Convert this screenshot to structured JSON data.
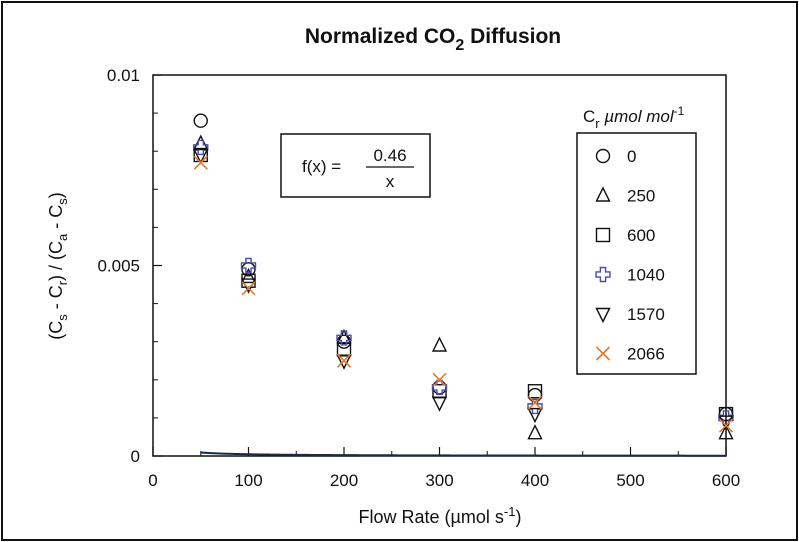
{
  "chart_data": {
    "type": "scatter",
    "title": "Normalized CO",
    "title_subscript": "2",
    "title_suffix": " Diffusion",
    "xlabel": "Flow Rate (µmol s",
    "xlabel_sup": "-1",
    "xlabel_end": ")",
    "ylabel_parts": [
      "(C",
      "s",
      " - C",
      "r",
      ") / (C",
      "a",
      " - C",
      "s",
      ")"
    ],
    "xlim": [
      0,
      600
    ],
    "ylim": [
      0,
      0.01
    ],
    "x_ticks": [
      0,
      100,
      200,
      300,
      400,
      500,
      600
    ],
    "x_tick_labels": [
      "0",
      "100",
      "200",
      "300",
      "400",
      "500",
      "600"
    ],
    "y_ticks": [
      0,
      0.005,
      0.01
    ],
    "y_tick_labels": [
      "0",
      "0.005",
      "0.01"
    ],
    "grid": false,
    "legend_position": "right",
    "legend_title": "C",
    "legend_title_sub": "r",
    "legend_title_unit": " µmol mol",
    "legend_title_sup": "-1",
    "formula": {
      "lhs": "f(x) = ",
      "numerator": "0.46",
      "denominator": "x",
      "a": 0.46
    },
    "series": [
      {
        "name": "0",
        "marker": "circle",
        "color": "#111111",
        "x": [
          50,
          100,
          200,
          300,
          400,
          600
        ],
        "y": [
          0.0088,
          0.0049,
          0.003,
          0.0018,
          0.0016,
          0.0011
        ]
      },
      {
        "name": "250",
        "marker": "triangle-up",
        "color": "#111111",
        "x": [
          50,
          100,
          200,
          300,
          400,
          600
        ],
        "y": [
          0.0082,
          0.0047,
          0.0031,
          0.0029,
          0.0006,
          0.0006
        ]
      },
      {
        "name": "600",
        "marker": "square",
        "color": "#111111",
        "x": [
          50,
          100,
          200,
          300,
          400,
          600
        ],
        "y": [
          0.0079,
          0.0046,
          0.0028,
          0.0017,
          0.0017,
          0.0011
        ]
      },
      {
        "name": "1040",
        "marker": "plus",
        "color": "#4a4aa8",
        "x": [
          50,
          100,
          200,
          300,
          400,
          600
        ],
        "y": [
          0.0081,
          0.005,
          0.0031,
          0.0018,
          0.0013,
          0.001
        ]
      },
      {
        "name": "1570",
        "marker": "triangle-down",
        "color": "#111111",
        "x": [
          50,
          100,
          200,
          300,
          400,
          600
        ],
        "y": [
          0.0079,
          0.0045,
          0.0025,
          0.0014,
          0.0011,
          0.0009
        ]
      },
      {
        "name": "2066",
        "marker": "x",
        "color": "#e07b2a",
        "x": [
          50,
          100,
          200,
          300,
          400,
          600
        ],
        "y": [
          0.0077,
          0.0044,
          0.0025,
          0.002,
          0.0014,
          0.0008
        ]
      }
    ]
  }
}
